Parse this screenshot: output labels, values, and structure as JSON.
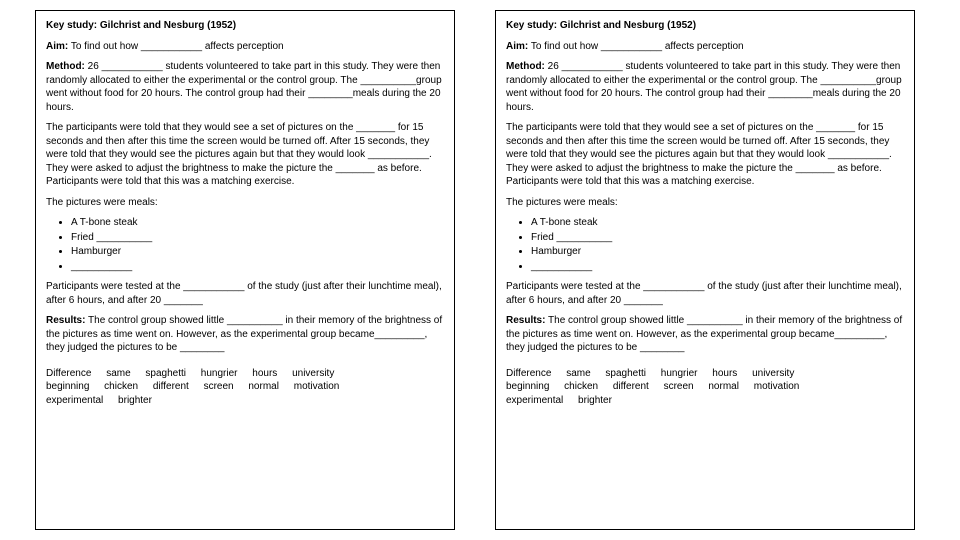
{
  "title": "Key study: Gilchrist and Nesburg (1952)",
  "aim_label": "Aim:",
  "aim_text_1": " To find out how ___________ affects perception",
  "method_label": "Method:",
  "method_text": " 26 ___________ students volunteered to take part in this study. They were then randomly allocated to either the experimental or the control group. The __________group went without food for 20 hours. The control group had their ________meals during the 20 hours.",
  "para2": "The participants were told that they would see a set of pictures on the _______ for 15 seconds and then after this time the screen would be turned off. After 15 seconds, they were told that they would see the pictures again but that they would look ___________. They were asked to adjust the brightness to make the picture the _______ as before. Participants were told that this was a matching exercise.",
  "pics_intro": "The pictures were meals:",
  "item1": "A T-bone steak",
  "item2": "Fried __________",
  "item3": "Hamburger",
  "item4": "___________",
  "para3": "Participants were tested at the ___________ of the study (just after their lunchtime meal), after 6 hours, and after 20 _______",
  "results_label": "Results:",
  "results_text": " The control group showed little __________ in their memory of the brightness of the pictures as time went on. However, as the experimental group became_________, they judged the pictures to be ________",
  "w1": "Difference",
  "w2": "same",
  "w3": "spaghetti",
  "w4": "hungrier",
  "w5": "hours",
  "w6": "university",
  "w7": "beginning",
  "w8": "chicken",
  "w9": "different",
  "w10": "screen",
  "w11": "normal",
  "w12": "motivation",
  "w13": "experimental",
  "w14": "brighter"
}
